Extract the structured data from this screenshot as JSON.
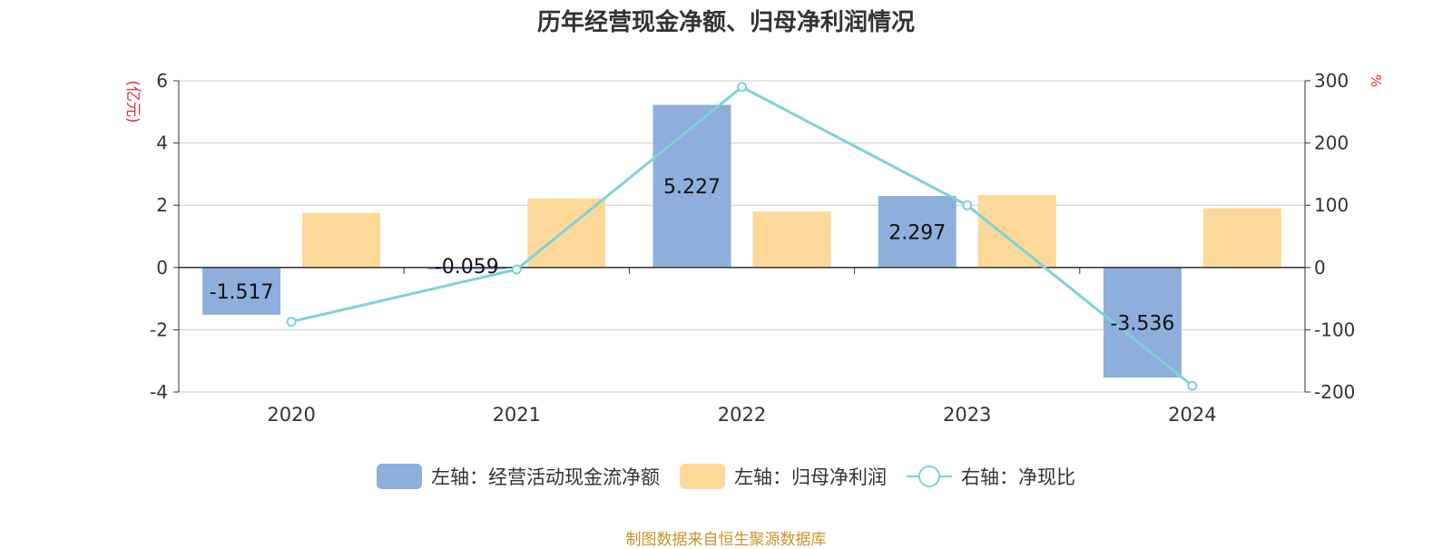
{
  "title": "历年经营现金净额、归母净利润情况",
  "left_unit": "(亿元)",
  "right_unit": "%",
  "source": "制图数据来自恒生聚源数据库",
  "colors": {
    "cash": "#8eaedb",
    "profit": "#fdd898",
    "ratio": "#7dd3d6",
    "unit": "#e03030"
  },
  "legend": [
    {
      "label": "左轴：经营活动现金流净额",
      "icon": "bar-swatch-blue"
    },
    {
      "label": "左轴：归母净利润",
      "icon": "bar-swatch-orange"
    },
    {
      "label": "右轴：净现比",
      "icon": "line-circle-swatch"
    }
  ],
  "chart_data": {
    "type": "bar",
    "categories": [
      "2020",
      "2021",
      "2022",
      "2023",
      "2024"
    ],
    "series": [
      {
        "name": "左轴：经营活动现金流净额",
        "axis": "left",
        "type": "bar",
        "values": [
          -1.517,
          -0.059,
          5.227,
          2.297,
          -3.536
        ],
        "labels": [
          "-1.517",
          "-0.059",
          "5.227",
          "2.297",
          "-3.536"
        ]
      },
      {
        "name": "左轴：归母净利润",
        "axis": "left",
        "type": "bar",
        "values": [
          1.75,
          2.22,
          1.8,
          2.33,
          1.9
        ]
      },
      {
        "name": "右轴：净现比",
        "axis": "right",
        "type": "line",
        "values": [
          -87,
          -3,
          290,
          100,
          -190
        ]
      }
    ],
    "left_axis": {
      "min": -4,
      "max": 6,
      "ticks": [
        -4,
        -2,
        0,
        2,
        4,
        6
      ]
    },
    "right_axis": {
      "min": -200,
      "max": 300,
      "ticks": [
        -200,
        -100,
        0,
        100,
        200,
        300
      ]
    },
    "grid": true,
    "legend_position": "bottom"
  }
}
